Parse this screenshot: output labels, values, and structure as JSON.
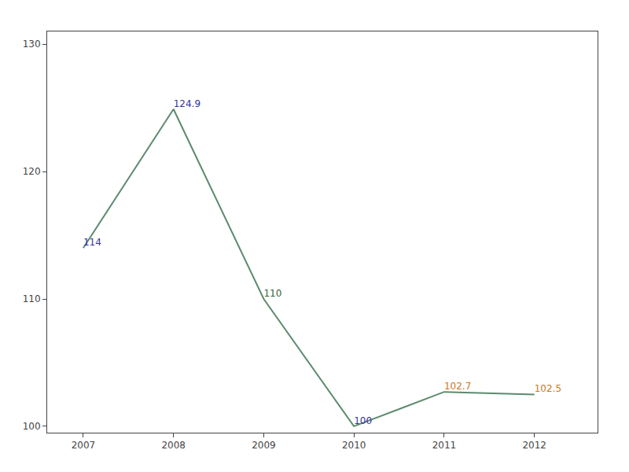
{
  "chart_data": {
    "type": "line",
    "x": [
      2007,
      2008,
      2009,
      2010,
      2011,
      2012
    ],
    "values": [
      114,
      124.9,
      110,
      100,
      102.7,
      102.5
    ],
    "color": "#5c8a6e",
    "colors": [
      "#3333aa",
      "#333399",
      "#336633",
      "#333399",
      "#cc7722",
      "#cc7722"
    ],
    "data_labels": true,
    "xlim": [
      2006.6,
      2012.7
    ],
    "xticks": [
      2007,
      2008,
      2009,
      2010,
      2011,
      2012
    ],
    "ylim": [
      99.5,
      131
    ],
    "yticks": [
      100,
      110,
      120,
      130
    ],
    "grid": false
  }
}
